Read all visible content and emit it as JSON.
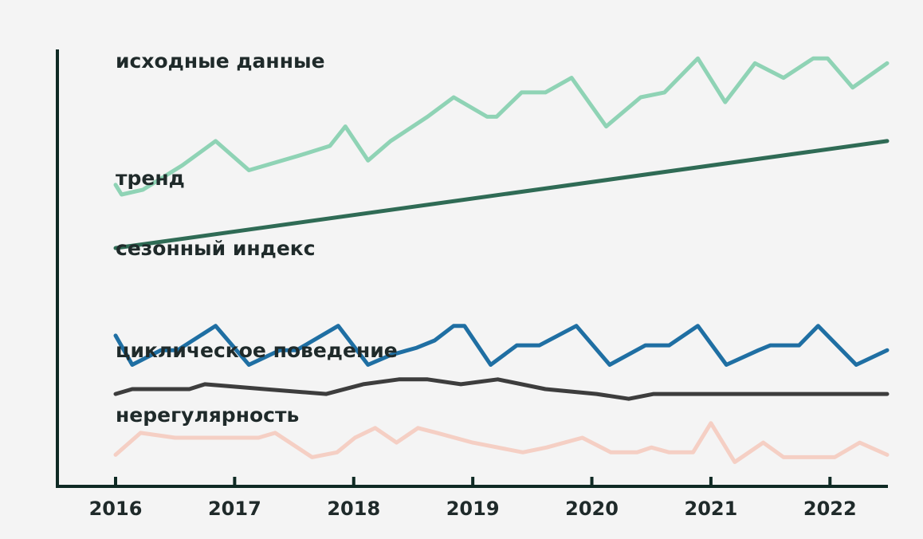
{
  "chart_data": {
    "type": "line",
    "title": "",
    "xlabel": "",
    "ylabel": "",
    "xlim": [
      2016.0,
      2022.48
    ],
    "x_ticks": [
      "2016",
      "2017",
      "2018",
      "2019",
      "2020",
      "2021",
      "2022"
    ],
    "grid": false,
    "legend": "none",
    "series": [
      {
        "name": "исходные данные",
        "color": "#8fd3b5",
        "x": [
          2016.0,
          2016.05,
          2016.23,
          2016.56,
          2016.84,
          2017.12,
          2017.54,
          2017.8,
          2017.93,
          2018.12,
          2018.31,
          2018.62,
          2018.84,
          2019.12,
          2019.2,
          2019.41,
          2019.61,
          2019.83,
          2020.12,
          2020.41,
          2020.61,
          2020.89,
          2021.12,
          2021.37,
          2021.61,
          2021.86,
          2021.98,
          2022.19,
          2022.48
        ],
        "y": [
          0.62,
          0.6,
          0.61,
          0.66,
          0.71,
          0.65,
          0.68,
          0.7,
          0.74,
          0.67,
          0.71,
          0.76,
          0.8,
          0.76,
          0.76,
          0.81,
          0.81,
          0.84,
          0.74,
          0.8,
          0.81,
          0.88,
          0.79,
          0.87,
          0.84,
          0.88,
          0.88,
          0.82,
          0.87
        ]
      },
      {
        "name": "тренд",
        "color": "#2f6b55",
        "x": [
          2016.0,
          2022.48
        ],
        "y": [
          0.49,
          0.71
        ]
      },
      {
        "name": "сезонный индекс",
        "color": "#1f6fa3",
        "x": [
          2016.0,
          2016.14,
          2016.38,
          2016.52,
          2016.84,
          2017.12,
          2017.38,
          2017.52,
          2017.87,
          2018.12,
          2018.31,
          2018.53,
          2018.68,
          2018.84,
          2018.93,
          2019.15,
          2019.37,
          2019.56,
          2019.87,
          2020.15,
          2020.45,
          2020.65,
          2020.89,
          2021.13,
          2021.4,
          2021.5,
          2021.74,
          2021.9,
          2022.22,
          2022.48
        ],
        "y": [
          0.31,
          0.25,
          0.28,
          0.28,
          0.33,
          0.25,
          0.28,
          0.28,
          0.33,
          0.25,
          0.27,
          0.285,
          0.3,
          0.33,
          0.33,
          0.25,
          0.29,
          0.29,
          0.33,
          0.25,
          0.29,
          0.29,
          0.33,
          0.25,
          0.28,
          0.29,
          0.29,
          0.33,
          0.25,
          0.28
        ]
      },
      {
        "name": "циклическое поведение",
        "color": "#3d3d3d",
        "x": [
          2016.0,
          2016.14,
          2016.62,
          2016.75,
          2017.25,
          2017.77,
          2018.08,
          2018.38,
          2018.62,
          2018.9,
          2019.21,
          2019.61,
          2020.04,
          2020.31,
          2020.52,
          2020.69,
          2020.93,
          2021.36,
          2021.69,
          2021.85,
          2022.0,
          2022.48
        ],
        "y": [
          0.19,
          0.2,
          0.2,
          0.21,
          0.2,
          0.19,
          0.21,
          0.22,
          0.22,
          0.21,
          0.22,
          0.2,
          0.19,
          0.18,
          0.19,
          0.19,
          0.19,
          0.19,
          0.19,
          0.19,
          0.19,
          0.19
        ]
      },
      {
        "name": "нерегулярность",
        "color": "#f5cfc4",
        "x": [
          2016.0,
          2016.21,
          2016.5,
          2017.2,
          2017.34,
          2017.65,
          2017.86,
          2018.01,
          2018.18,
          2018.36,
          2018.54,
          2018.7,
          2019.0,
          2019.42,
          2019.62,
          2019.92,
          2020.16,
          2020.38,
          2020.5,
          2020.65,
          2020.85,
          2021.0,
          2021.2,
          2021.44,
          2021.61,
          2021.85,
          2022.04,
          2022.25,
          2022.48
        ],
        "y": [
          0.065,
          0.11,
          0.1,
          0.1,
          0.11,
          0.06,
          0.07,
          0.1,
          0.12,
          0.09,
          0.12,
          0.11,
          0.09,
          0.07,
          0.08,
          0.1,
          0.07,
          0.07,
          0.08,
          0.07,
          0.07,
          0.13,
          0.05,
          0.09,
          0.06,
          0.06,
          0.06,
          0.09,
          0.065
        ]
      }
    ]
  }
}
